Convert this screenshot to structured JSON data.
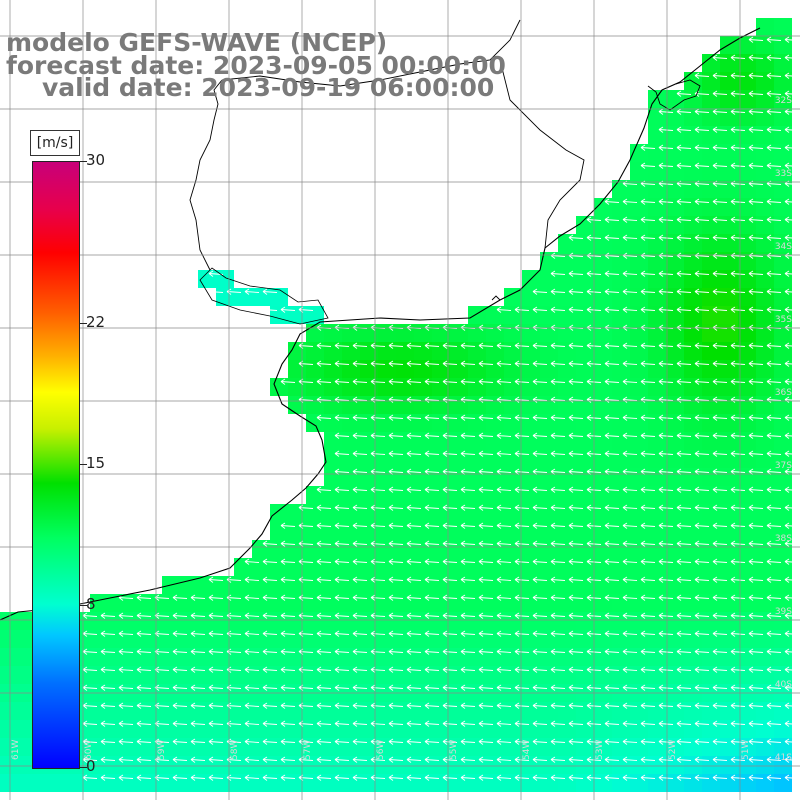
{
  "title": {
    "line1": "modelo GEFS-WAVE (NCEP)",
    "line2": "forecast date: 2023-09-05 00:00:00",
    "line3": "valid date: 2023-09-19 06:00:00"
  },
  "colorbar": {
    "unit": "[m/s]",
    "ticks": [
      {
        "label": "30",
        "value": 30
      },
      {
        "label": "22",
        "value": 22
      },
      {
        "label": "15",
        "value": 15
      },
      {
        "label": "8",
        "value": 8
      },
      {
        "label": "0",
        "value": 0
      }
    ],
    "min": 0,
    "max": 30
  },
  "map": {
    "latitude_labels": [
      "32S",
      "33S",
      "34S",
      "35S",
      "36S",
      "37S",
      "38S",
      "39S",
      "40S",
      "41S"
    ],
    "longitude_labels": [
      "61W",
      "60W",
      "59W",
      "58W",
      "57W",
      "56W",
      "55W",
      "54W",
      "53W",
      "52W",
      "51W"
    ],
    "wind_direction": "from east (arrows pointing west)",
    "colors": {
      "land": "#ffffff",
      "coast": "#000000",
      "grid": "#8a8a8a",
      "arrow": "#ffffff"
    }
  }
}
